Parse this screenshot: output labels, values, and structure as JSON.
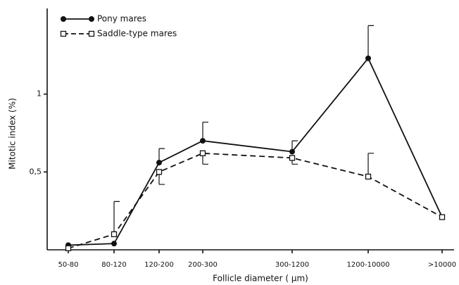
{
  "chart_data": {
    "type": "line",
    "xlabel": "Follicle diameter ( µm)",
    "ylabel": "Mitotic index (%)",
    "categories": [
      "50-80",
      "80-120",
      "120-200",
      "200-300",
      "300-1200",
      "1200-10000",
      ">10000"
    ],
    "ylim": [
      0,
      1.55
    ],
    "yticks": [
      {
        "value": 0.5,
        "label": "0,5"
      },
      1
    ],
    "legend": "upper left",
    "series": [
      {
        "name": "Pony mares",
        "color": "#111111",
        "marker": "filled-circle",
        "dash": "solid",
        "values": [
          0.03,
          0.04,
          0.56,
          0.7,
          0.63,
          1.23,
          0.21
        ],
        "errors": [
          null,
          null,
          0.09,
          0.12,
          0.07,
          0.21,
          null
        ],
        "error_direction": [
          null,
          null,
          "up",
          "up",
          "up",
          "up",
          null
        ]
      },
      {
        "name": "Saddle-type mares",
        "color": "#111111",
        "marker": "open-square",
        "dash": "dashed",
        "values": [
          0.01,
          0.1,
          0.5,
          0.62,
          0.59,
          0.47,
          0.21
        ],
        "errors": [
          null,
          0.21,
          0.08,
          0.07,
          0.04,
          0.15,
          null
        ],
        "error_direction": [
          null,
          "up",
          "down",
          "down",
          "down",
          "up",
          null
        ]
      }
    ]
  }
}
